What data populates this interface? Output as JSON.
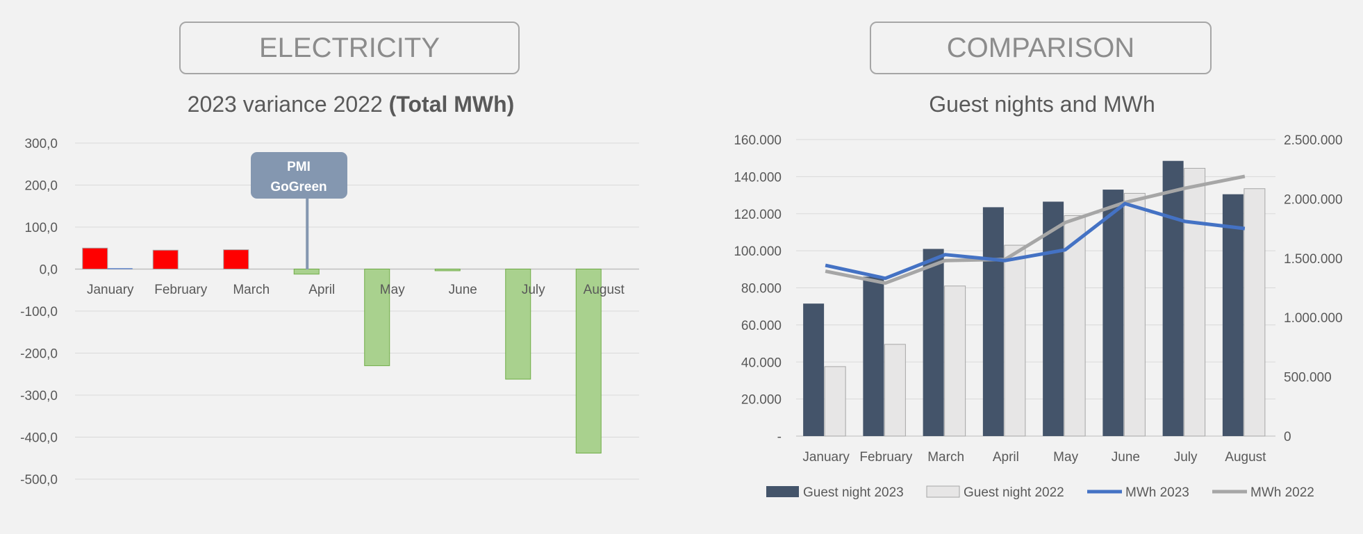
{
  "sections": {
    "left": "ELECTRICITY",
    "right": "COMPARISON"
  },
  "titles": {
    "left_main": "2023 variance 2022",
    "left_bold": "(Total MWh)",
    "right": "Guest nights and MWh"
  },
  "colors": {
    "positive": "#ff0000",
    "negative": "#a9d18e",
    "callout": "#8497b0",
    "guest2023": "#44546a",
    "guest2022": "#e7e6e6",
    "mwh2023": "#4472c4",
    "mwh2022": "#a6a6a6"
  },
  "chart_data": [
    {
      "type": "bar",
      "title": "2023 variance 2022 (Total MWh)",
      "categories": [
        "January",
        "February",
        "March",
        "April",
        "May",
        "June",
        "July",
        "August"
      ],
      "series": [
        {
          "values": [
            50,
            45,
            46,
            -12,
            -230,
            -4,
            -262,
            -438
          ]
        },
        {
          "values": [
            2,
            0,
            0,
            0,
            0,
            0,
            0,
            0
          ]
        }
      ],
      "ylim": [
        -500,
        300
      ],
      "yticks": [
        "300,0",
        "200,0",
        "100,0",
        "0,0",
        "-100,0",
        "-200,0",
        "-300,0",
        "-400,0",
        "-500,0"
      ],
      "grid": true,
      "annotation": {
        "text": [
          "PMI",
          "GoGreen"
        ],
        "category": "April"
      }
    },
    {
      "type": "bar",
      "title": "Guest nights and MWh",
      "categories": [
        "January",
        "February",
        "March",
        "April",
        "May",
        "June",
        "July",
        "August"
      ],
      "series": [
        {
          "name": "Guest night 2023",
          "type": "bar",
          "axis": "left",
          "values": [
            71500,
            86000,
            101000,
            123500,
            126500,
            133000,
            148500,
            130500
          ]
        },
        {
          "name": "Guest night 2022",
          "type": "bar",
          "axis": "left",
          "values": [
            37500,
            49500,
            81000,
            103000,
            119000,
            131000,
            144500,
            133500
          ]
        },
        {
          "name": "MWh 2023",
          "type": "line",
          "axis": "right",
          "values": [
            1440000,
            1330000,
            1530000,
            1480000,
            1570000,
            1960000,
            1810000,
            1750000
          ]
        },
        {
          "name": "MWh 2022",
          "type": "line",
          "axis": "right",
          "values": [
            1390000,
            1290000,
            1480000,
            1490000,
            1800000,
            1970000,
            2090000,
            2190000
          ]
        }
      ],
      "ylim_left": [
        0,
        160000
      ],
      "ylim_right": [
        0,
        2500000
      ],
      "yticks_left": [
        "-",
        "20.000",
        "40.000",
        "60.000",
        "80.000",
        "100.000",
        "120.000",
        "140.000",
        "160.000"
      ],
      "yticks_right": [
        "0",
        "500.000",
        "1.000.000",
        "1.500.000",
        "2.000.000",
        "2.500.000"
      ],
      "grid": true,
      "legend": "bottom"
    }
  ]
}
